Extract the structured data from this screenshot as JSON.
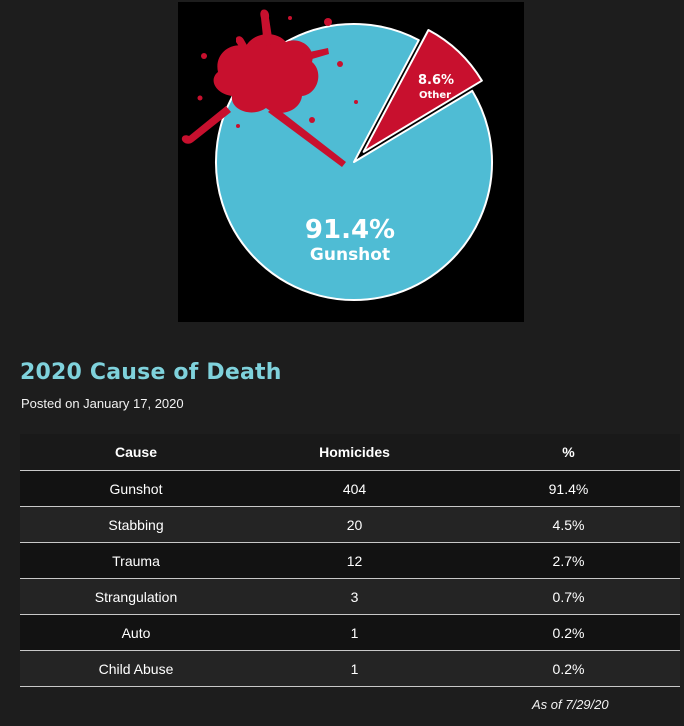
{
  "chart_data": {
    "type": "pie",
    "slices": [
      {
        "label": "Gunshot",
        "value": 91.4,
        "display": "91.4%",
        "color": "#4fbcd4"
      },
      {
        "label": "Other",
        "value": 8.6,
        "display": "8.6%",
        "color": "#c8102e"
      }
    ],
    "exploded": "Other"
  },
  "article": {
    "title": "2020 Cause of Death",
    "posted": "Posted on January 17, 2020"
  },
  "table": {
    "headers": [
      "Cause",
      "Homicides",
      "%"
    ],
    "rows": [
      [
        "Gunshot",
        "404",
        "91.4%"
      ],
      [
        "Stabbing",
        "20",
        "4.5%"
      ],
      [
        "Trauma",
        "12",
        "2.7%"
      ],
      [
        "Strangulation",
        "3",
        "0.7%"
      ],
      [
        "Auto",
        "1",
        "0.2%"
      ],
      [
        "Child Abuse",
        "1",
        "0.2%"
      ]
    ],
    "note": "As of 7/29/20"
  }
}
